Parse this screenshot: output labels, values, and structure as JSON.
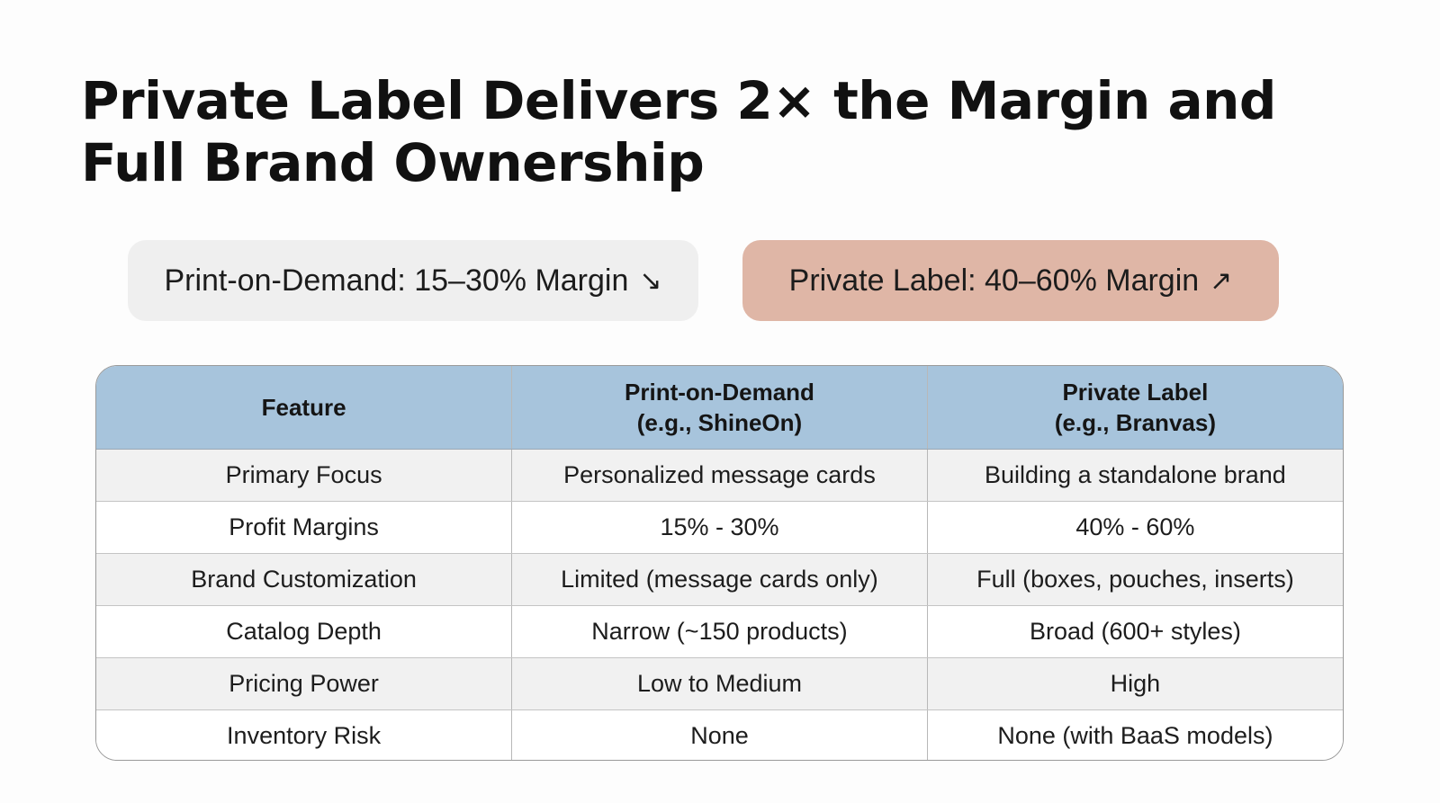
{
  "slide": {
    "title": "Private Label Delivers 2× the Margin and Full Brand Ownership"
  },
  "badges": {
    "pod": {
      "label": "Print-on-Demand: 15–30% Margin",
      "arrow": "↘"
    },
    "private_label": {
      "label": "Private Label: 40–60% Margin",
      "arrow": "↗"
    }
  },
  "table": {
    "headers": [
      {
        "line1": "Feature",
        "line2": ""
      },
      {
        "line1": "Print-on-Demand",
        "line2": "(e.g., ShineOn)"
      },
      {
        "line1": "Private Label",
        "line2": "(e.g., Branvas)"
      }
    ],
    "rows": [
      [
        "Primary Focus",
        "Personalized message cards",
        "Building a standalone brand"
      ],
      [
        "Profit Margins",
        "15% - 30%",
        "40% - 60%"
      ],
      [
        "Brand Customization",
        "Limited (message cards only)",
        "Full (boxes, pouches, inserts)"
      ],
      [
        "Catalog Depth",
        "Narrow (~150 products)",
        "Broad (600+ styles)"
      ],
      [
        "Pricing Power",
        "Low to Medium",
        "High"
      ],
      [
        "Inventory Risk",
        "None",
        "None (with BaaS models)"
      ]
    ]
  },
  "colors": {
    "header_bg": "#a7c4dc",
    "pod_badge_bg": "#efefef",
    "private_label_badge_bg": "#dfb6a6",
    "row_alt_bg": "#f1f1f1"
  }
}
